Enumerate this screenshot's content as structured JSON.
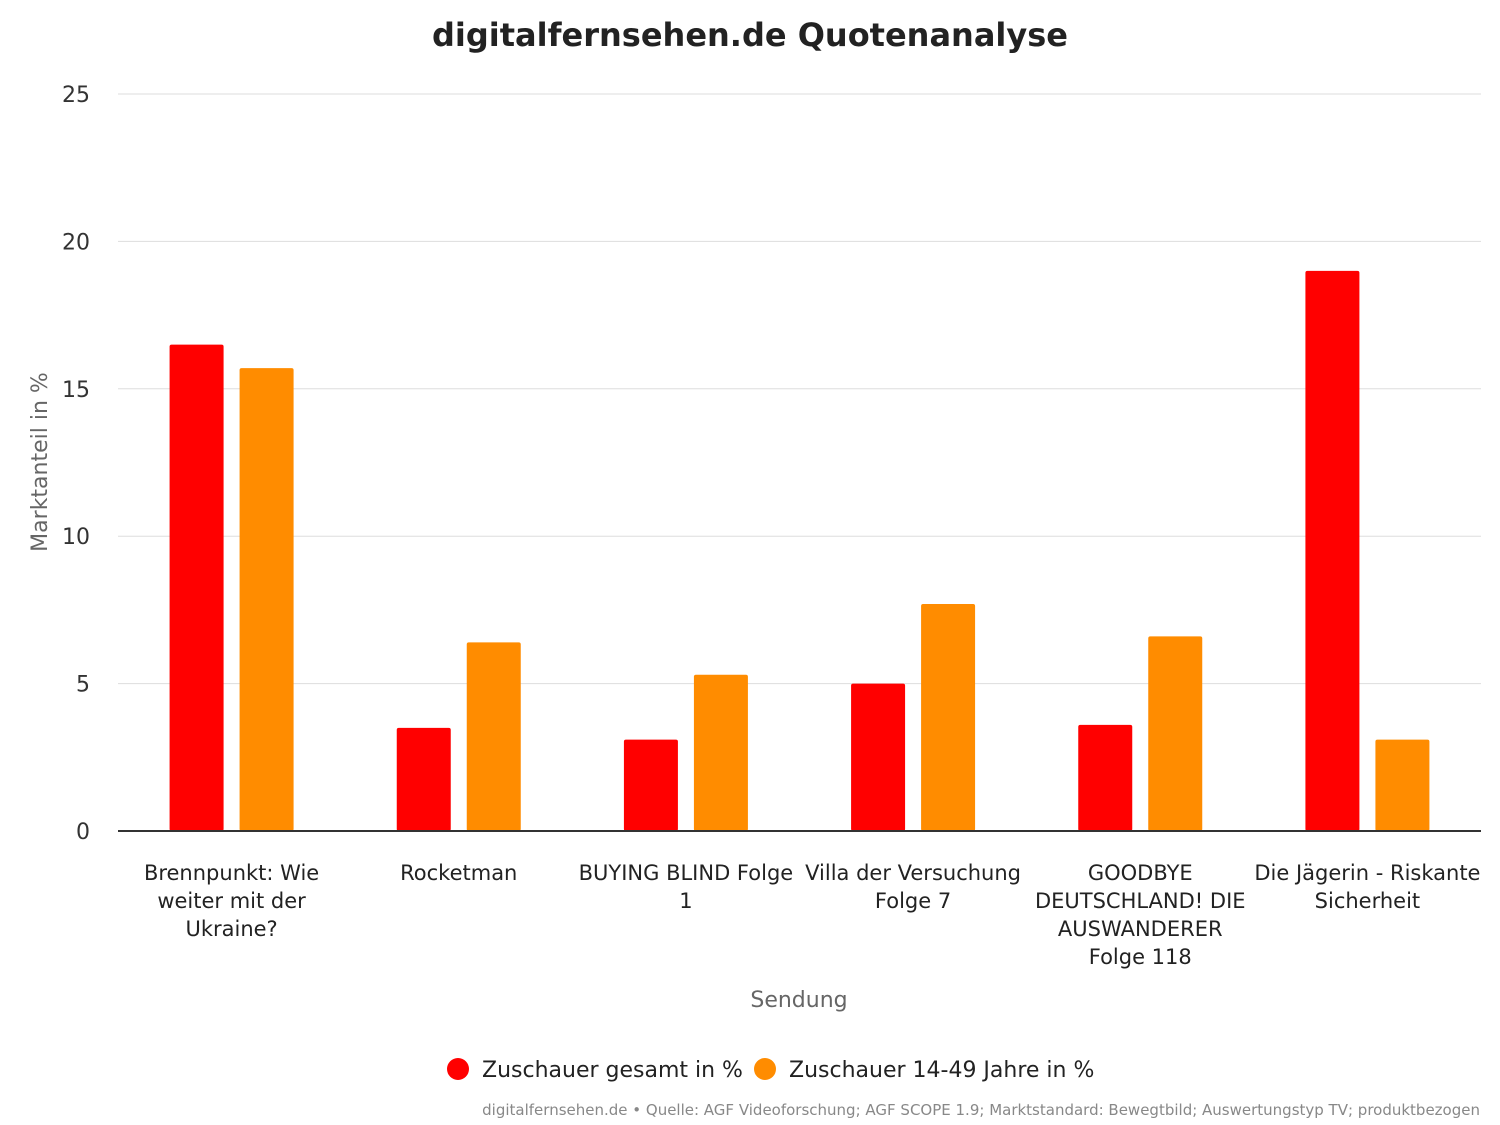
{
  "chart_data": {
    "type": "bar",
    "title": "digitalfernsehen.de Quotenanalyse",
    "xlabel": "Sendung",
    "ylabel": "Marktanteil in %",
    "ylim": [
      0,
      25
    ],
    "yticks": [
      0,
      5,
      10,
      15,
      20,
      25
    ],
    "grid": true,
    "legend_position": "bottom",
    "categories": [
      [
        "Brennpunkt: Wie",
        "weiter mit der",
        "Ukraine?"
      ],
      [
        "Rocketman"
      ],
      [
        "BUYING BLIND Folge",
        "1"
      ],
      [
        "Villa der Versuchung",
        "Folge 7"
      ],
      [
        "GOODBYE",
        "DEUTSCHLAND! DIE",
        "AUSWANDERER",
        "Folge 118"
      ],
      [
        "Die Jägerin - Riskante",
        "Sicherheit"
      ]
    ],
    "series": [
      {
        "name": "Zuschauer gesamt in %",
        "color": "#ff0000",
        "values": [
          16.5,
          3.5,
          3.1,
          5.0,
          3.6,
          19.0
        ]
      },
      {
        "name": "Zuschauer 14-49 Jahre in %",
        "color": "#ff8c00",
        "values": [
          15.7,
          6.4,
          5.3,
          7.7,
          6.6,
          3.1
        ]
      }
    ],
    "credits": "digitalfernsehen.de • Quelle: AGF Videoforschung; AGF SCOPE 1.9; Marktstandard: Bewegtbild; Auswertungstyp TV; produktbezogen"
  }
}
